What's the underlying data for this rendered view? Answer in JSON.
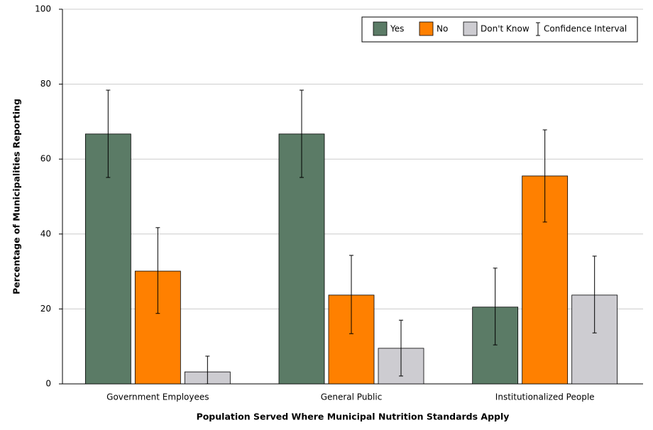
{
  "chart_data": {
    "type": "bar",
    "x_label": "Population Served Where Municipal Nutrition Standards Apply",
    "y_label": "Percentage of Municipalities Reporting",
    "categories": [
      "Government Employees",
      "General Public",
      "Institutionalized People"
    ],
    "series": [
      {
        "name": "Yes",
        "color": "#5b7b66",
        "values": [
          66.7,
          66.7,
          20.5
        ],
        "ci_low": [
          55.1,
          55.1,
          10.4
        ],
        "ci_high": [
          78.4,
          78.4,
          30.9
        ]
      },
      {
        "name": "No",
        "color": "#ff8000",
        "values": [
          30.1,
          23.7,
          55.5
        ],
        "ci_low": [
          18.8,
          13.4,
          43.2
        ],
        "ci_high": [
          41.7,
          34.3,
          67.8
        ]
      },
      {
        "name": "Don't Know",
        "color": "#cdccd1",
        "values": [
          3.2,
          9.5,
          23.7
        ],
        "ci_low": [
          0,
          2.1,
          13.6
        ],
        "ci_high": [
          7.4,
          17.0,
          34.1
        ]
      }
    ],
    "ci_legend": "Confidence Interval",
    "ylim": [
      0,
      100
    ],
    "yticks": [
      0,
      20,
      40,
      60,
      80,
      100
    ],
    "grid": true
  }
}
